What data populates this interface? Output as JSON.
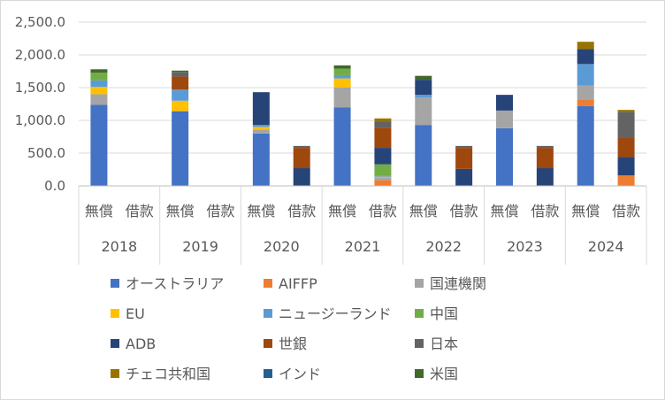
{
  "chart_data": {
    "type": "bar",
    "stacked": true,
    "title": "",
    "xlabel": "",
    "ylabel": "",
    "ylim": [
      0,
      2500
    ],
    "yticks": [
      "0.0",
      "500.0",
      "1,000.0",
      "1,500.0",
      "2,000.0",
      "2,500.0"
    ],
    "grid": true,
    "legend_position": "bottom",
    "groups": [
      "2018",
      "2019",
      "2020",
      "2021",
      "2022",
      "2023",
      "2024"
    ],
    "subcategories": [
      "無償",
      "借款"
    ],
    "series": [
      {
        "name": "オーストラリア",
        "color": "#4472C4",
        "values": [
          1240,
          0,
          1140,
          0,
          800,
          0,
          1200,
          0,
          930,
          0,
          880,
          0,
          1220,
          0
        ]
      },
      {
        "name": "AIFFP",
        "color": "#ED7D31",
        "values": [
          0,
          0,
          0,
          0,
          0,
          0,
          0,
          90,
          0,
          0,
          0,
          0,
          100,
          160
        ]
      },
      {
        "name": "国連機関",
        "color": "#A5A5A5",
        "values": [
          160,
          0,
          0,
          0,
          60,
          0,
          300,
          40,
          420,
          0,
          270,
          0,
          210,
          0
        ]
      },
      {
        "name": "EU",
        "color": "#FFC000",
        "values": [
          110,
          0,
          160,
          0,
          40,
          0,
          140,
          10,
          0,
          0,
          0,
          0,
          0,
          0
        ]
      },
      {
        "name": "ニュージーランド",
        "color": "#5B9BD5",
        "values": [
          100,
          0,
          170,
          0,
          30,
          0,
          50,
          20,
          40,
          0,
          0,
          0,
          330,
          0
        ]
      },
      {
        "name": "中国",
        "color": "#70AD47",
        "values": [
          120,
          0,
          0,
          0,
          0,
          0,
          100,
          170,
          0,
          0,
          0,
          0,
          0,
          0
        ]
      },
      {
        "name": "ADB",
        "color": "#264478",
        "values": [
          0,
          0,
          0,
          0,
          500,
          270,
          0,
          250,
          230,
          260,
          240,
          270,
          230,
          280
        ]
      },
      {
        "name": "世銀",
        "color": "#9E480E",
        "values": [
          0,
          0,
          200,
          0,
          0,
          310,
          0,
          310,
          0,
          320,
          0,
          310,
          0,
          290
        ]
      },
      {
        "name": "日本",
        "color": "#636363",
        "values": [
          0,
          0,
          70,
          0,
          0,
          30,
          0,
          90,
          0,
          30,
          0,
          30,
          0,
          400
        ]
      },
      {
        "name": "チェコ共和国",
        "color": "#997300",
        "values": [
          0,
          0,
          0,
          0,
          0,
          0,
          0,
          50,
          0,
          0,
          0,
          0,
          110,
          30
        ]
      },
      {
        "name": "インド",
        "color": "#255E91",
        "values": [
          0,
          0,
          0,
          0,
          0,
          0,
          0,
          0,
          0,
          0,
          0,
          0,
          0,
          0
        ]
      },
      {
        "name": "米国",
        "color": "#43682B",
        "values": [
          50,
          0,
          20,
          0,
          0,
          0,
          50,
          0,
          60,
          0,
          0,
          0,
          0,
          0
        ]
      }
    ]
  }
}
